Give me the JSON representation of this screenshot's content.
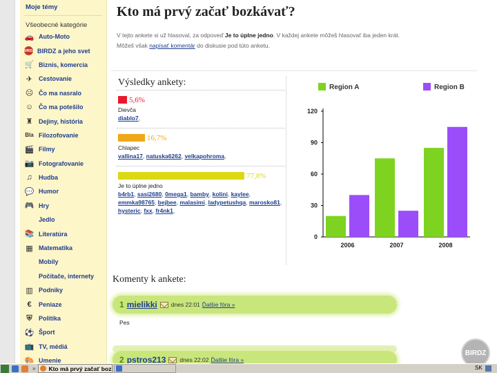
{
  "sidebar": {
    "top_link": "Moje témy",
    "categories_title": "Všeobecné kategórie",
    "items": [
      {
        "label": "Auto-Moto",
        "icon": "car-icon",
        "glyph": "🚗"
      },
      {
        "label": "BIRDZ a jeho svet",
        "icon": "birdz-badge-icon",
        "glyph": "BIRDZ"
      },
      {
        "label": "Biznis, komercia",
        "icon": "shopping-cart-icon",
        "glyph": "🛒"
      },
      {
        "label": "Cestovanie",
        "icon": "airplane-icon",
        "glyph": "✈"
      },
      {
        "label": "Čo ma nasralo",
        "icon": "angry-face-icon",
        "glyph": "☹"
      },
      {
        "label": "Čo ma potešilo",
        "icon": "happy-face-icon",
        "glyph": "☺"
      },
      {
        "label": "Dejiny, história",
        "icon": "castle-icon",
        "glyph": "♜"
      },
      {
        "label": "Filozofovanie",
        "icon": "bla-text-icon",
        "glyph": "Bla"
      },
      {
        "label": "Filmy",
        "icon": "clapperboard-icon",
        "glyph": "🎬"
      },
      {
        "label": "Fotografovanie",
        "icon": "camera-icon",
        "glyph": "📷"
      },
      {
        "label": "Hudba",
        "icon": "music-note-icon",
        "glyph": "♫"
      },
      {
        "label": "Humor",
        "icon": "speech-bubble-icon",
        "glyph": "💬"
      },
      {
        "label": "Hry",
        "icon": "gamepad-icon",
        "glyph": "🎮"
      },
      {
        "label": "Jedlo",
        "icon": "",
        "glyph": ""
      },
      {
        "label": "Literatúra",
        "icon": "books-icon",
        "glyph": "📚"
      },
      {
        "label": "Matematika",
        "icon": "calculator-icon",
        "glyph": "▦"
      },
      {
        "label": "Mobily",
        "icon": "",
        "glyph": ""
      },
      {
        "label": "Počítače, internety",
        "icon": "",
        "glyph": ""
      },
      {
        "label": "Podniky",
        "icon": "building-icon",
        "glyph": "▥"
      },
      {
        "label": "Peniaze",
        "icon": "euro-icon",
        "glyph": "€"
      },
      {
        "label": "Politika",
        "icon": "slovak-emblem-icon",
        "glyph": "⛨"
      },
      {
        "label": "Šport",
        "icon": "soccer-ball-icon",
        "glyph": "⚽"
      },
      {
        "label": "TV, médiá",
        "icon": "tv-icon",
        "glyph": "📺"
      },
      {
        "label": "Umenie",
        "icon": "palette-icon",
        "glyph": "🎨"
      }
    ]
  },
  "poll": {
    "title": "Kto má prvý začať bozkávať?",
    "info_prefix": "V tejto ankete si už hlasoval, za odpoveď",
    "voted_answer": "Je to úplne jedno",
    "info_suffix": ". V každej ankete môžeš hlasovať iba jeden krát.",
    "info_line2_prefix": "Môžeš však",
    "comment_link": "napísať komentár",
    "info_line2_suffix": "do diskusie pod túto anketu.",
    "results_title": "Výsledky ankety:",
    "options": [
      {
        "label": "Dievča",
        "percent": "5,6%",
        "fraction": 0.056,
        "color": "#e8192c",
        "voters": [
          "diablo7"
        ]
      },
      {
        "label": "Chlapec",
        "percent": "16,7%",
        "fraction": 0.167,
        "color": "#f0a818",
        "voters": [
          "vallina17",
          "natuska6262",
          "velkapohroma"
        ]
      },
      {
        "label": "Je to úplne jedno",
        "percent": "77,8%",
        "fraction": 0.778,
        "color": "#dcd812",
        "voters": [
          "b4rb1",
          "sasi2680",
          "0mega1",
          "bamby",
          "kolini",
          "kaylee",
          "emmka98765",
          "bejbee",
          "malasimi",
          "ladypetushqa",
          "marosko81",
          "hysteric",
          "fxx",
          "fr4nk1"
        ]
      }
    ]
  },
  "chart_data": {
    "type": "bar",
    "categories": [
      "2006",
      "2007",
      "2008"
    ],
    "series": [
      {
        "name": "Region A",
        "values": [
          20,
          75,
          85
        ],
        "color": "#7ed321"
      },
      {
        "name": "Region B",
        "values": [
          40,
          25,
          105
        ],
        "color": "#9b4dfa"
      }
    ],
    "ylim": [
      0,
      120
    ],
    "yticks": [
      0,
      30,
      60,
      90,
      120
    ],
    "grid": false,
    "legend": "top",
    "title": "",
    "xlabel": "",
    "ylabel": ""
  },
  "comments": {
    "title": "Komenty k ankete:",
    "items": [
      {
        "num": "1",
        "user": "mielikki",
        "time": "dnes 22:01",
        "more": "Ďalšie fóra »",
        "text": "Pes"
      },
      {
        "num": "2",
        "user": "pstros213",
        "time": "dnes 22:02",
        "more": "Ďalšie fóra »",
        "text": ""
      }
    ]
  },
  "logo_text": "BIRDZ",
  "taskbar": {
    "task_title": "Kto má prvý začať bozkáv...",
    "lang": "SK"
  }
}
